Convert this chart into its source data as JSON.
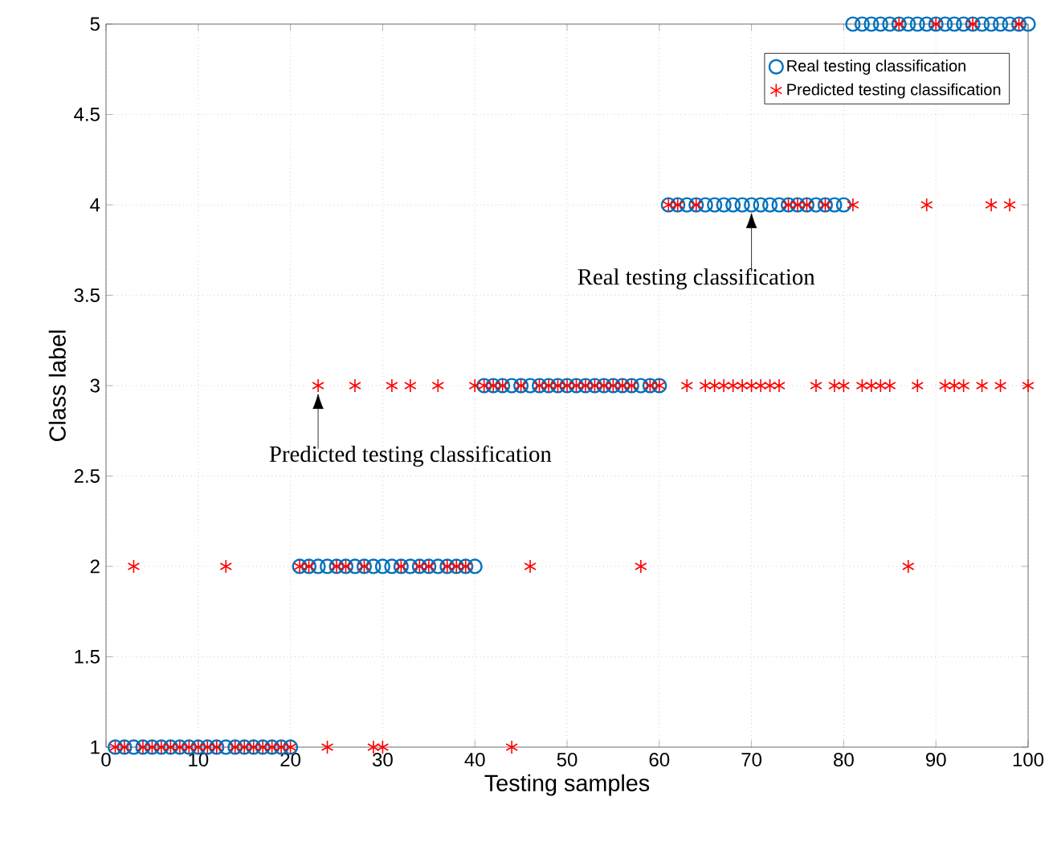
{
  "chart_data": {
    "type": "scatter",
    "xlabel": "Testing samples",
    "ylabel": "Class label",
    "x": [
      1,
      2,
      3,
      4,
      5,
      6,
      7,
      8,
      9,
      10,
      11,
      12,
      13,
      14,
      15,
      16,
      17,
      18,
      19,
      20,
      21,
      22,
      23,
      24,
      25,
      26,
      27,
      28,
      29,
      30,
      31,
      32,
      33,
      34,
      35,
      36,
      37,
      38,
      39,
      40,
      41,
      42,
      43,
      44,
      45,
      46,
      47,
      48,
      49,
      50,
      51,
      52,
      53,
      54,
      55,
      56,
      57,
      58,
      59,
      60,
      61,
      62,
      63,
      64,
      65,
      66,
      67,
      68,
      69,
      70,
      71,
      72,
      73,
      74,
      75,
      76,
      77,
      78,
      79,
      80,
      81,
      82,
      83,
      84,
      85,
      86,
      87,
      88,
      89,
      90,
      91,
      92,
      93,
      94,
      95,
      96,
      97,
      98,
      99,
      100
    ],
    "series": [
      {
        "name": "Real testing classification",
        "color": "#0072bd",
        "marker": "circle",
        "values": [
          1,
          1,
          1,
          1,
          1,
          1,
          1,
          1,
          1,
          1,
          1,
          1,
          1,
          1,
          1,
          1,
          1,
          1,
          1,
          1,
          2,
          2,
          2,
          2,
          2,
          2,
          2,
          2,
          2,
          2,
          2,
          2,
          2,
          2,
          2,
          2,
          2,
          2,
          2,
          2,
          3,
          3,
          3,
          3,
          3,
          3,
          3,
          3,
          3,
          3,
          3,
          3,
          3,
          3,
          3,
          3,
          3,
          3,
          3,
          3,
          4,
          4,
          4,
          4,
          4,
          4,
          4,
          4,
          4,
          4,
          4,
          4,
          4,
          4,
          4,
          4,
          4,
          4,
          4,
          4,
          5,
          5,
          5,
          5,
          5,
          5,
          5,
          5,
          5,
          5,
          5,
          5,
          5,
          5,
          5,
          5,
          5,
          5,
          5,
          5
        ]
      },
      {
        "name": "Predicted testing classification",
        "color": "#ff0000",
        "marker": "cross",
        "values": [
          1,
          1,
          2,
          1,
          1,
          1,
          1,
          1,
          1,
          1,
          1,
          1,
          2,
          1,
          1,
          1,
          1,
          1,
          1,
          1,
          2,
          2,
          3,
          1,
          2,
          2,
          3,
          2,
          1,
          1,
          3,
          2,
          3,
          2,
          2,
          3,
          2,
          2,
          2,
          3,
          3,
          3,
          3,
          1,
          3,
          2,
          3,
          3,
          3,
          3,
          3,
          3,
          3,
          3,
          3,
          3,
          3,
          2,
          3,
          3,
          4,
          4,
          3,
          4,
          3,
          3,
          3,
          3,
          3,
          3,
          3,
          3,
          3,
          4,
          4,
          4,
          3,
          4,
          3,
          3,
          4,
          3,
          3,
          3,
          3,
          5,
          2,
          3,
          4,
          5,
          3,
          3,
          3,
          5,
          3,
          4,
          3,
          4,
          5,
          3
        ]
      }
    ],
    "xlim": [
      0,
      100
    ],
    "ylim": [
      1,
      5
    ],
    "xticks": [
      0,
      10,
      20,
      30,
      40,
      50,
      60,
      70,
      80,
      90,
      100
    ],
    "yticks": [
      1,
      1.5,
      2,
      2.5,
      3,
      3.5,
      4,
      4.5,
      5
    ],
    "grid": true,
    "legend": "top right",
    "annotations": [
      {
        "text": "Predicted testing classification",
        "x": 23,
        "y": 3
      },
      {
        "text": "Real testing classification",
        "x": 70,
        "y": 4
      }
    ]
  }
}
